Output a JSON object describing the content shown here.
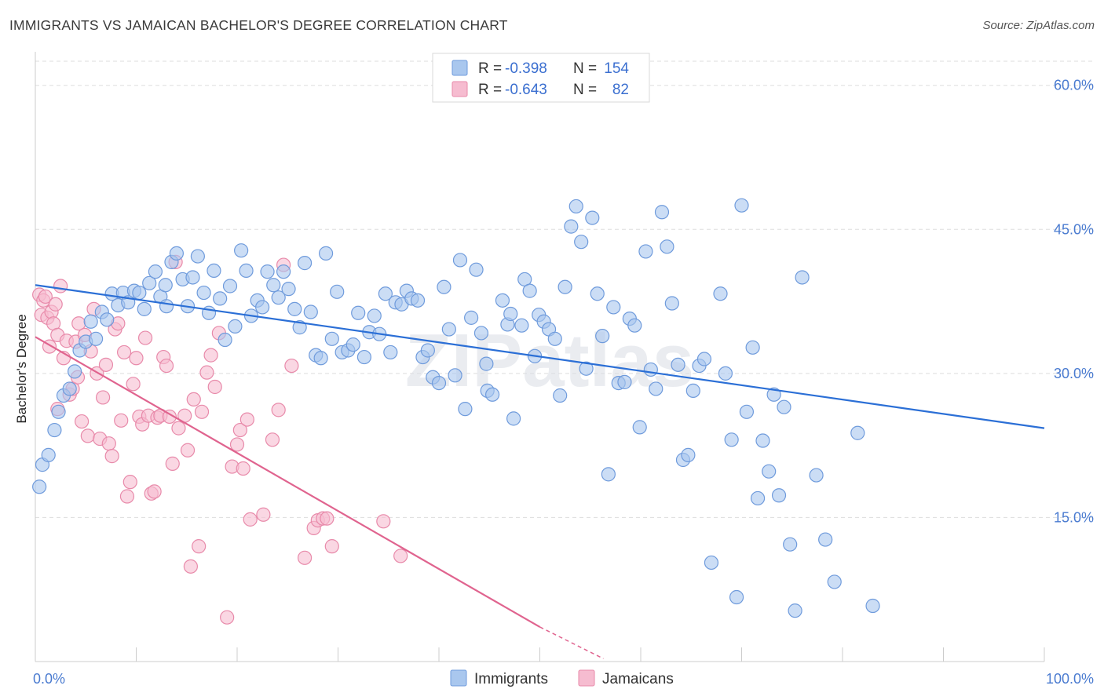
{
  "title": "IMMIGRANTS VS JAMAICAN BACHELOR'S DEGREE CORRELATION CHART",
  "source": "Source: ZipAtlas.com",
  "watermark": "ZIPatlas",
  "colors": {
    "immigrants_fill": "#a9c7ee",
    "immigrants_stroke": "#6f9bdc",
    "immigrants_line": "#2b6fd6",
    "jamaicans_fill": "#f6bcd0",
    "jamaicans_stroke": "#e88aaa",
    "jamaicans_line": "#e0648f",
    "tick_label": "#4a7bd0",
    "grid": "#dddddd"
  },
  "legend": {
    "rows": [
      {
        "r_label": "R =",
        "r_value": "-0.398",
        "n_label": "N =",
        "n_value": "154"
      },
      {
        "r_label": "R =",
        "r_value": "-0.643",
        "n_label": "N =",
        "n_value": "82"
      }
    ]
  },
  "chart_data": {
    "type": "scatter",
    "title": "IMMIGRANTS VS JAMAICAN BACHELOR'S DEGREE CORRELATION CHART",
    "xlabel": "",
    "ylabel": "Bachelor's Degree",
    "xlim": [
      0,
      100
    ],
    "ylim": [
      0,
      63
    ],
    "x_tick_labels": [
      "0.0%",
      "100.0%"
    ],
    "y_ticks": [
      15,
      30,
      45,
      60
    ],
    "y_tick_labels": [
      "15.0%",
      "30.0%",
      "45.0%",
      "60.0%"
    ],
    "grid": true,
    "legend_position": "top-center",
    "series": [
      {
        "name": "Immigrants",
        "r": -0.398,
        "n": 154,
        "trend": {
          "x": [
            0,
            100
          ],
          "y": [
            39.2,
            24.3
          ]
        },
        "points": [
          [
            0.4,
            18.2
          ],
          [
            0.7,
            20.5
          ],
          [
            1.3,
            21.5
          ],
          [
            1.9,
            24.1
          ],
          [
            2.3,
            26.0
          ],
          [
            2.8,
            27.7
          ],
          [
            3.4,
            28.4
          ],
          [
            3.9,
            30.2
          ],
          [
            4.4,
            32.4
          ],
          [
            5.0,
            33.3
          ],
          [
            5.5,
            35.4
          ],
          [
            6.0,
            33.6
          ],
          [
            6.6,
            36.4
          ],
          [
            7.1,
            35.6
          ],
          [
            7.6,
            38.3
          ],
          [
            8.2,
            37.1
          ],
          [
            8.7,
            38.4
          ],
          [
            9.2,
            37.4
          ],
          [
            9.8,
            38.6
          ],
          [
            10.3,
            38.4
          ],
          [
            10.8,
            36.7
          ],
          [
            11.3,
            39.4
          ],
          [
            11.9,
            40.6
          ],
          [
            12.4,
            38.0
          ],
          [
            12.9,
            39.2
          ],
          [
            13.5,
            41.6
          ],
          [
            13.0,
            37.0
          ],
          [
            14.0,
            42.5
          ],
          [
            14.6,
            39.8
          ],
          [
            15.1,
            37.0
          ],
          [
            15.6,
            40.0
          ],
          [
            16.1,
            42.2
          ],
          [
            16.7,
            38.4
          ],
          [
            17.2,
            36.3
          ],
          [
            17.7,
            40.7
          ],
          [
            18.3,
            37.8
          ],
          [
            18.8,
            33.5
          ],
          [
            19.3,
            39.1
          ],
          [
            19.8,
            34.9
          ],
          [
            20.4,
            42.8
          ],
          [
            20.9,
            40.7
          ],
          [
            21.4,
            36.0
          ],
          [
            22.0,
            37.6
          ],
          [
            22.5,
            36.9
          ],
          [
            23.0,
            40.6
          ],
          [
            23.6,
            39.2
          ],
          [
            24.1,
            37.9
          ],
          [
            24.6,
            40.6
          ],
          [
            25.1,
            38.8
          ],
          [
            25.7,
            36.7
          ],
          [
            26.2,
            34.8
          ],
          [
            26.7,
            41.5
          ],
          [
            27.3,
            36.4
          ],
          [
            27.8,
            31.9
          ],
          [
            28.3,
            31.6
          ],
          [
            28.8,
            42.5
          ],
          [
            29.4,
            33.6
          ],
          [
            29.9,
            38.5
          ],
          [
            30.4,
            32.2
          ],
          [
            31.0,
            32.4
          ],
          [
            31.5,
            33.0
          ],
          [
            32.0,
            36.3
          ],
          [
            32.6,
            31.7
          ],
          [
            33.1,
            34.3
          ],
          [
            33.6,
            36.0
          ],
          [
            34.1,
            34.1
          ],
          [
            34.7,
            38.3
          ],
          [
            35.2,
            32.2
          ],
          [
            35.7,
            37.4
          ],
          [
            36.3,
            37.2
          ],
          [
            36.8,
            38.6
          ],
          [
            37.3,
            37.8
          ],
          [
            37.9,
            37.6
          ],
          [
            38.4,
            31.7
          ],
          [
            38.9,
            32.4
          ],
          [
            39.4,
            29.6
          ],
          [
            40.0,
            29.0
          ],
          [
            40.5,
            39.0
          ],
          [
            41.0,
            34.6
          ],
          [
            41.6,
            29.8
          ],
          [
            42.1,
            41.8
          ],
          [
            42.6,
            26.3
          ],
          [
            43.2,
            35.8
          ],
          [
            43.7,
            40.8
          ],
          [
            44.2,
            34.2
          ],
          [
            44.7,
            31.0
          ],
          [
            44.8,
            28.2
          ],
          [
            45.3,
            27.8
          ],
          [
            46.3,
            37.6
          ],
          [
            46.8,
            35.1
          ],
          [
            47.1,
            36.2
          ],
          [
            47.4,
            25.3
          ],
          [
            48.2,
            35.0
          ],
          [
            48.5,
            39.8
          ],
          [
            49.0,
            38.6
          ],
          [
            49.5,
            31.8
          ],
          [
            49.9,
            36.1
          ],
          [
            50.4,
            35.4
          ],
          [
            50.9,
            34.6
          ],
          [
            51.5,
            33.6
          ],
          [
            52.0,
            27.7
          ],
          [
            52.5,
            39.0
          ],
          [
            53.1,
            45.3
          ],
          [
            53.6,
            47.4
          ],
          [
            54.1,
            43.7
          ],
          [
            54.6,
            30.5
          ],
          [
            55.2,
            46.2
          ],
          [
            55.7,
            38.3
          ],
          [
            56.2,
            33.9
          ],
          [
            56.8,
            19.5
          ],
          [
            57.3,
            36.9
          ],
          [
            57.8,
            29.0
          ],
          [
            58.4,
            29.1
          ],
          [
            58.9,
            35.7
          ],
          [
            59.4,
            35.0
          ],
          [
            59.9,
            24.4
          ],
          [
            60.5,
            42.7
          ],
          [
            61.0,
            30.4
          ],
          [
            61.5,
            28.4
          ],
          [
            62.1,
            46.8
          ],
          [
            62.6,
            43.2
          ],
          [
            63.1,
            37.3
          ],
          [
            63.7,
            30.9
          ],
          [
            64.2,
            21.0
          ],
          [
            64.7,
            21.5
          ],
          [
            65.2,
            28.2
          ],
          [
            65.8,
            30.8
          ],
          [
            66.3,
            31.5
          ],
          [
            67.0,
            10.3
          ],
          [
            67.9,
            38.3
          ],
          [
            68.4,
            30.0
          ],
          [
            69.0,
            23.1
          ],
          [
            69.5,
            6.7
          ],
          [
            70.0,
            47.5
          ],
          [
            70.5,
            26.0
          ],
          [
            71.1,
            32.7
          ],
          [
            71.6,
            17.0
          ],
          [
            72.1,
            23.0
          ],
          [
            72.7,
            19.8
          ],
          [
            73.2,
            27.8
          ],
          [
            73.7,
            17.3
          ],
          [
            74.2,
            26.5
          ],
          [
            74.8,
            12.2
          ],
          [
            75.3,
            5.3
          ],
          [
            76.0,
            40.0
          ],
          [
            77.4,
            19.4
          ],
          [
            78.3,
            12.7
          ],
          [
            79.2,
            8.3
          ],
          [
            81.5,
            23.8
          ],
          [
            83.0,
            5.8
          ]
        ]
      },
      {
        "name": "Jamaicans",
        "r": -0.643,
        "n": 82,
        "trend": {
          "x": [
            0,
            56.3
          ],
          "y": [
            33.8,
            3.6
          ]
        },
        "trend_dashed": {
          "x": [
            50.0,
            56.3
          ],
          "y": [
            3.6,
            0.3
          ]
        },
        "points": [
          [
            0.4,
            38.2
          ],
          [
            0.6,
            36.1
          ],
          [
            0.8,
            37.6
          ],
          [
            1.0,
            38.0
          ],
          [
            1.2,
            35.8
          ],
          [
            1.4,
            32.8
          ],
          [
            1.6,
            36.4
          ],
          [
            1.8,
            35.2
          ],
          [
            2.0,
            37.2
          ],
          [
            2.2,
            34.0
          ],
          [
            2.5,
            39.1
          ],
          [
            2.8,
            31.6
          ],
          [
            3.1,
            33.4
          ],
          [
            3.4,
            27.8
          ],
          [
            3.7,
            28.4
          ],
          [
            4.0,
            33.3
          ],
          [
            4.3,
            35.2
          ],
          [
            4.6,
            25.0
          ],
          [
            4.9,
            34.0
          ],
          [
            5.2,
            23.5
          ],
          [
            5.5,
            32.3
          ],
          [
            5.8,
            36.7
          ],
          [
            6.1,
            30.0
          ],
          [
            6.4,
            23.2
          ],
          [
            6.7,
            27.5
          ],
          [
            7.0,
            30.9
          ],
          [
            7.3,
            22.7
          ],
          [
            7.6,
            21.4
          ],
          [
            7.9,
            34.6
          ],
          [
            8.2,
            35.2
          ],
          [
            8.5,
            25.1
          ],
          [
            8.8,
            32.2
          ],
          [
            9.1,
            17.2
          ],
          [
            9.4,
            18.7
          ],
          [
            9.7,
            28.9
          ],
          [
            10.0,
            31.6
          ],
          [
            10.3,
            25.5
          ],
          [
            10.6,
            24.7
          ],
          [
            10.9,
            33.7
          ],
          [
            11.2,
            25.6
          ],
          [
            11.5,
            17.5
          ],
          [
            11.8,
            17.7
          ],
          [
            12.1,
            25.4
          ],
          [
            12.4,
            25.6
          ],
          [
            12.7,
            31.7
          ],
          [
            13.0,
            30.8
          ],
          [
            13.3,
            25.5
          ],
          [
            13.6,
            20.6
          ],
          [
            13.9,
            41.6
          ],
          [
            14.2,
            24.3
          ],
          [
            14.8,
            25.6
          ],
          [
            15.1,
            22.0
          ],
          [
            15.4,
            9.9
          ],
          [
            15.7,
            27.3
          ],
          [
            16.2,
            12.0
          ],
          [
            16.5,
            26.0
          ],
          [
            17.0,
            30.1
          ],
          [
            17.4,
            31.9
          ],
          [
            17.8,
            28.6
          ],
          [
            18.2,
            34.2
          ],
          [
            19.0,
            4.6
          ],
          [
            19.5,
            20.3
          ],
          [
            20.0,
            22.6
          ],
          [
            20.3,
            24.1
          ],
          [
            20.6,
            20.1
          ],
          [
            21.0,
            25.2
          ],
          [
            21.3,
            14.8
          ],
          [
            22.6,
            15.3
          ],
          [
            23.5,
            23.1
          ],
          [
            24.1,
            26.2
          ],
          [
            24.6,
            41.3
          ],
          [
            26.7,
            10.8
          ],
          [
            27.6,
            13.9
          ],
          [
            28.0,
            14.7
          ],
          [
            28.5,
            14.9
          ],
          [
            28.9,
            14.9
          ],
          [
            29.4,
            12.0
          ],
          [
            34.5,
            14.6
          ],
          [
            36.2,
            11.0
          ],
          [
            25.4,
            30.8
          ],
          [
            4.2,
            29.6
          ],
          [
            2.2,
            26.3
          ]
        ]
      }
    ]
  },
  "bottom_legend": {
    "items": [
      "Immigrants",
      "Jamaicans"
    ]
  }
}
